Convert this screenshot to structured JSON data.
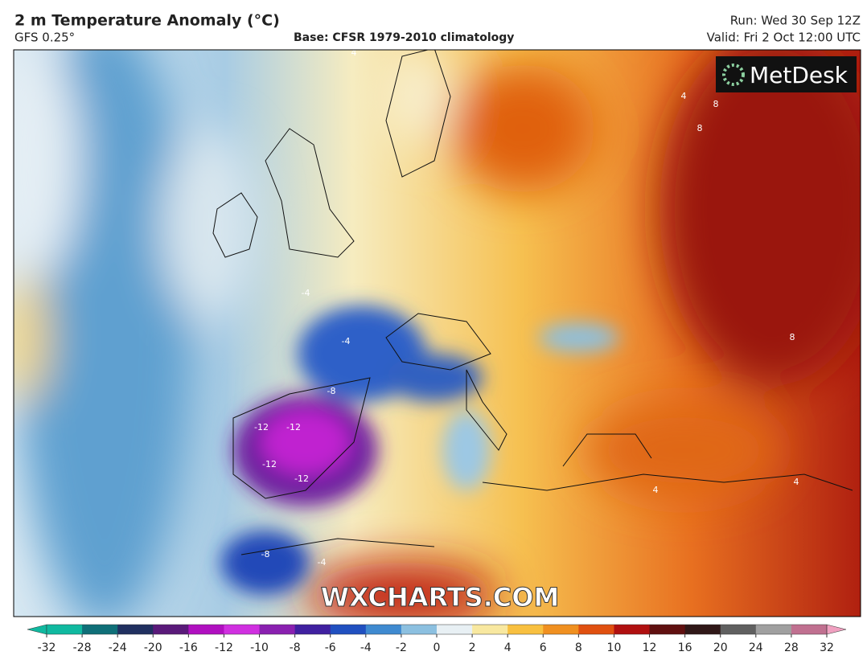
{
  "header": {
    "title": "2 m Temperature Anomaly (°C)",
    "model": "GFS 0.25°",
    "base": "Base: CFSR 1979-2010 climatology",
    "run": "Run: Wed 30 Sep 12Z",
    "valid": "Valid: Fri 2 Oct 12:00 UTC"
  },
  "logo": "MetDesk",
  "watermark": "WXCHARTS.COM",
  "contour_labels": [
    "-12",
    "-12",
    "-12",
    "-12",
    "-8",
    "-8",
    "-4",
    "-4",
    "-4",
    "4",
    "4",
    "4",
    "4",
    "8",
    "8",
    "8"
  ],
  "colorbar": {
    "ticks": [
      -32,
      -28,
      -24,
      -20,
      -16,
      -12,
      -10,
      -8,
      -6,
      -4,
      -2,
      0,
      2,
      4,
      6,
      8,
      10,
      12,
      16,
      20,
      24,
      28,
      32
    ],
    "colors": [
      "#10b9a0",
      "#0f6f78",
      "#203060",
      "#5a1a7a",
      "#b010c0",
      "#d030e0",
      "#8a20b0",
      "#4020a0",
      "#2050c0",
      "#3f8ad0",
      "#8cc0e0",
      "#e8f0f4",
      "#f8e8a0",
      "#f8c040",
      "#f09020",
      "#e05010",
      "#b01010",
      "#601010",
      "#301818",
      "#606060",
      "#a0a0a0",
      "#c07090",
      "#f0a0c0"
    ]
  }
}
